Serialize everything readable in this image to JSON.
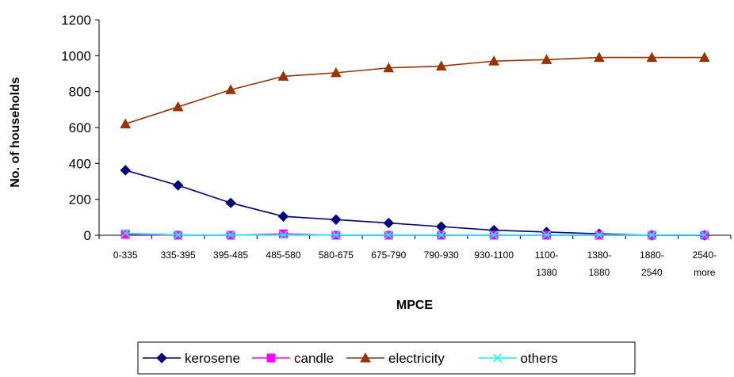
{
  "chart_data": {
    "type": "line",
    "title": "",
    "xlabel": "MPCE",
    "ylabel": "No. of households",
    "ylim": [
      0,
      1200
    ],
    "yticks": [
      "0",
      "200",
      "400",
      "600",
      "800",
      "1000",
      "1200"
    ],
    "categories": [
      [
        "0-335"
      ],
      [
        "335-395"
      ],
      [
        "395-485"
      ],
      [
        "485-580"
      ],
      [
        "580-675"
      ],
      [
        "675-790"
      ],
      [
        "790-930"
      ],
      [
        "930-1100"
      ],
      [
        "1100-",
        "1380"
      ],
      [
        "1380-",
        "1880"
      ],
      [
        "1880-",
        "2540"
      ],
      [
        "2540-",
        "more"
      ]
    ],
    "grid": false,
    "legend_position": "bottom",
    "series": [
      {
        "name": "kerosene",
        "color": "#000080",
        "marker": "diamond",
        "values": [
          362,
          278,
          180,
          105,
          87,
          68,
          48,
          28,
          18,
          8,
          0,
          0
        ]
      },
      {
        "name": "candle",
        "color": "#FF00FF",
        "marker": "square",
        "values": [
          5,
          0,
          0,
          8,
          0,
          0,
          0,
          0,
          0,
          0,
          0,
          0
        ]
      },
      {
        "name": "electricity",
        "color": "#993300",
        "marker": "triangle",
        "values": [
          620,
          715,
          810,
          885,
          905,
          932,
          942,
          970,
          978,
          990,
          990,
          990
        ]
      },
      {
        "name": "others",
        "color": "#00FFFF",
        "marker": "x",
        "values": [
          12,
          2,
          2,
          2,
          2,
          2,
          2,
          2,
          2,
          2,
          2,
          2
        ]
      }
    ]
  }
}
